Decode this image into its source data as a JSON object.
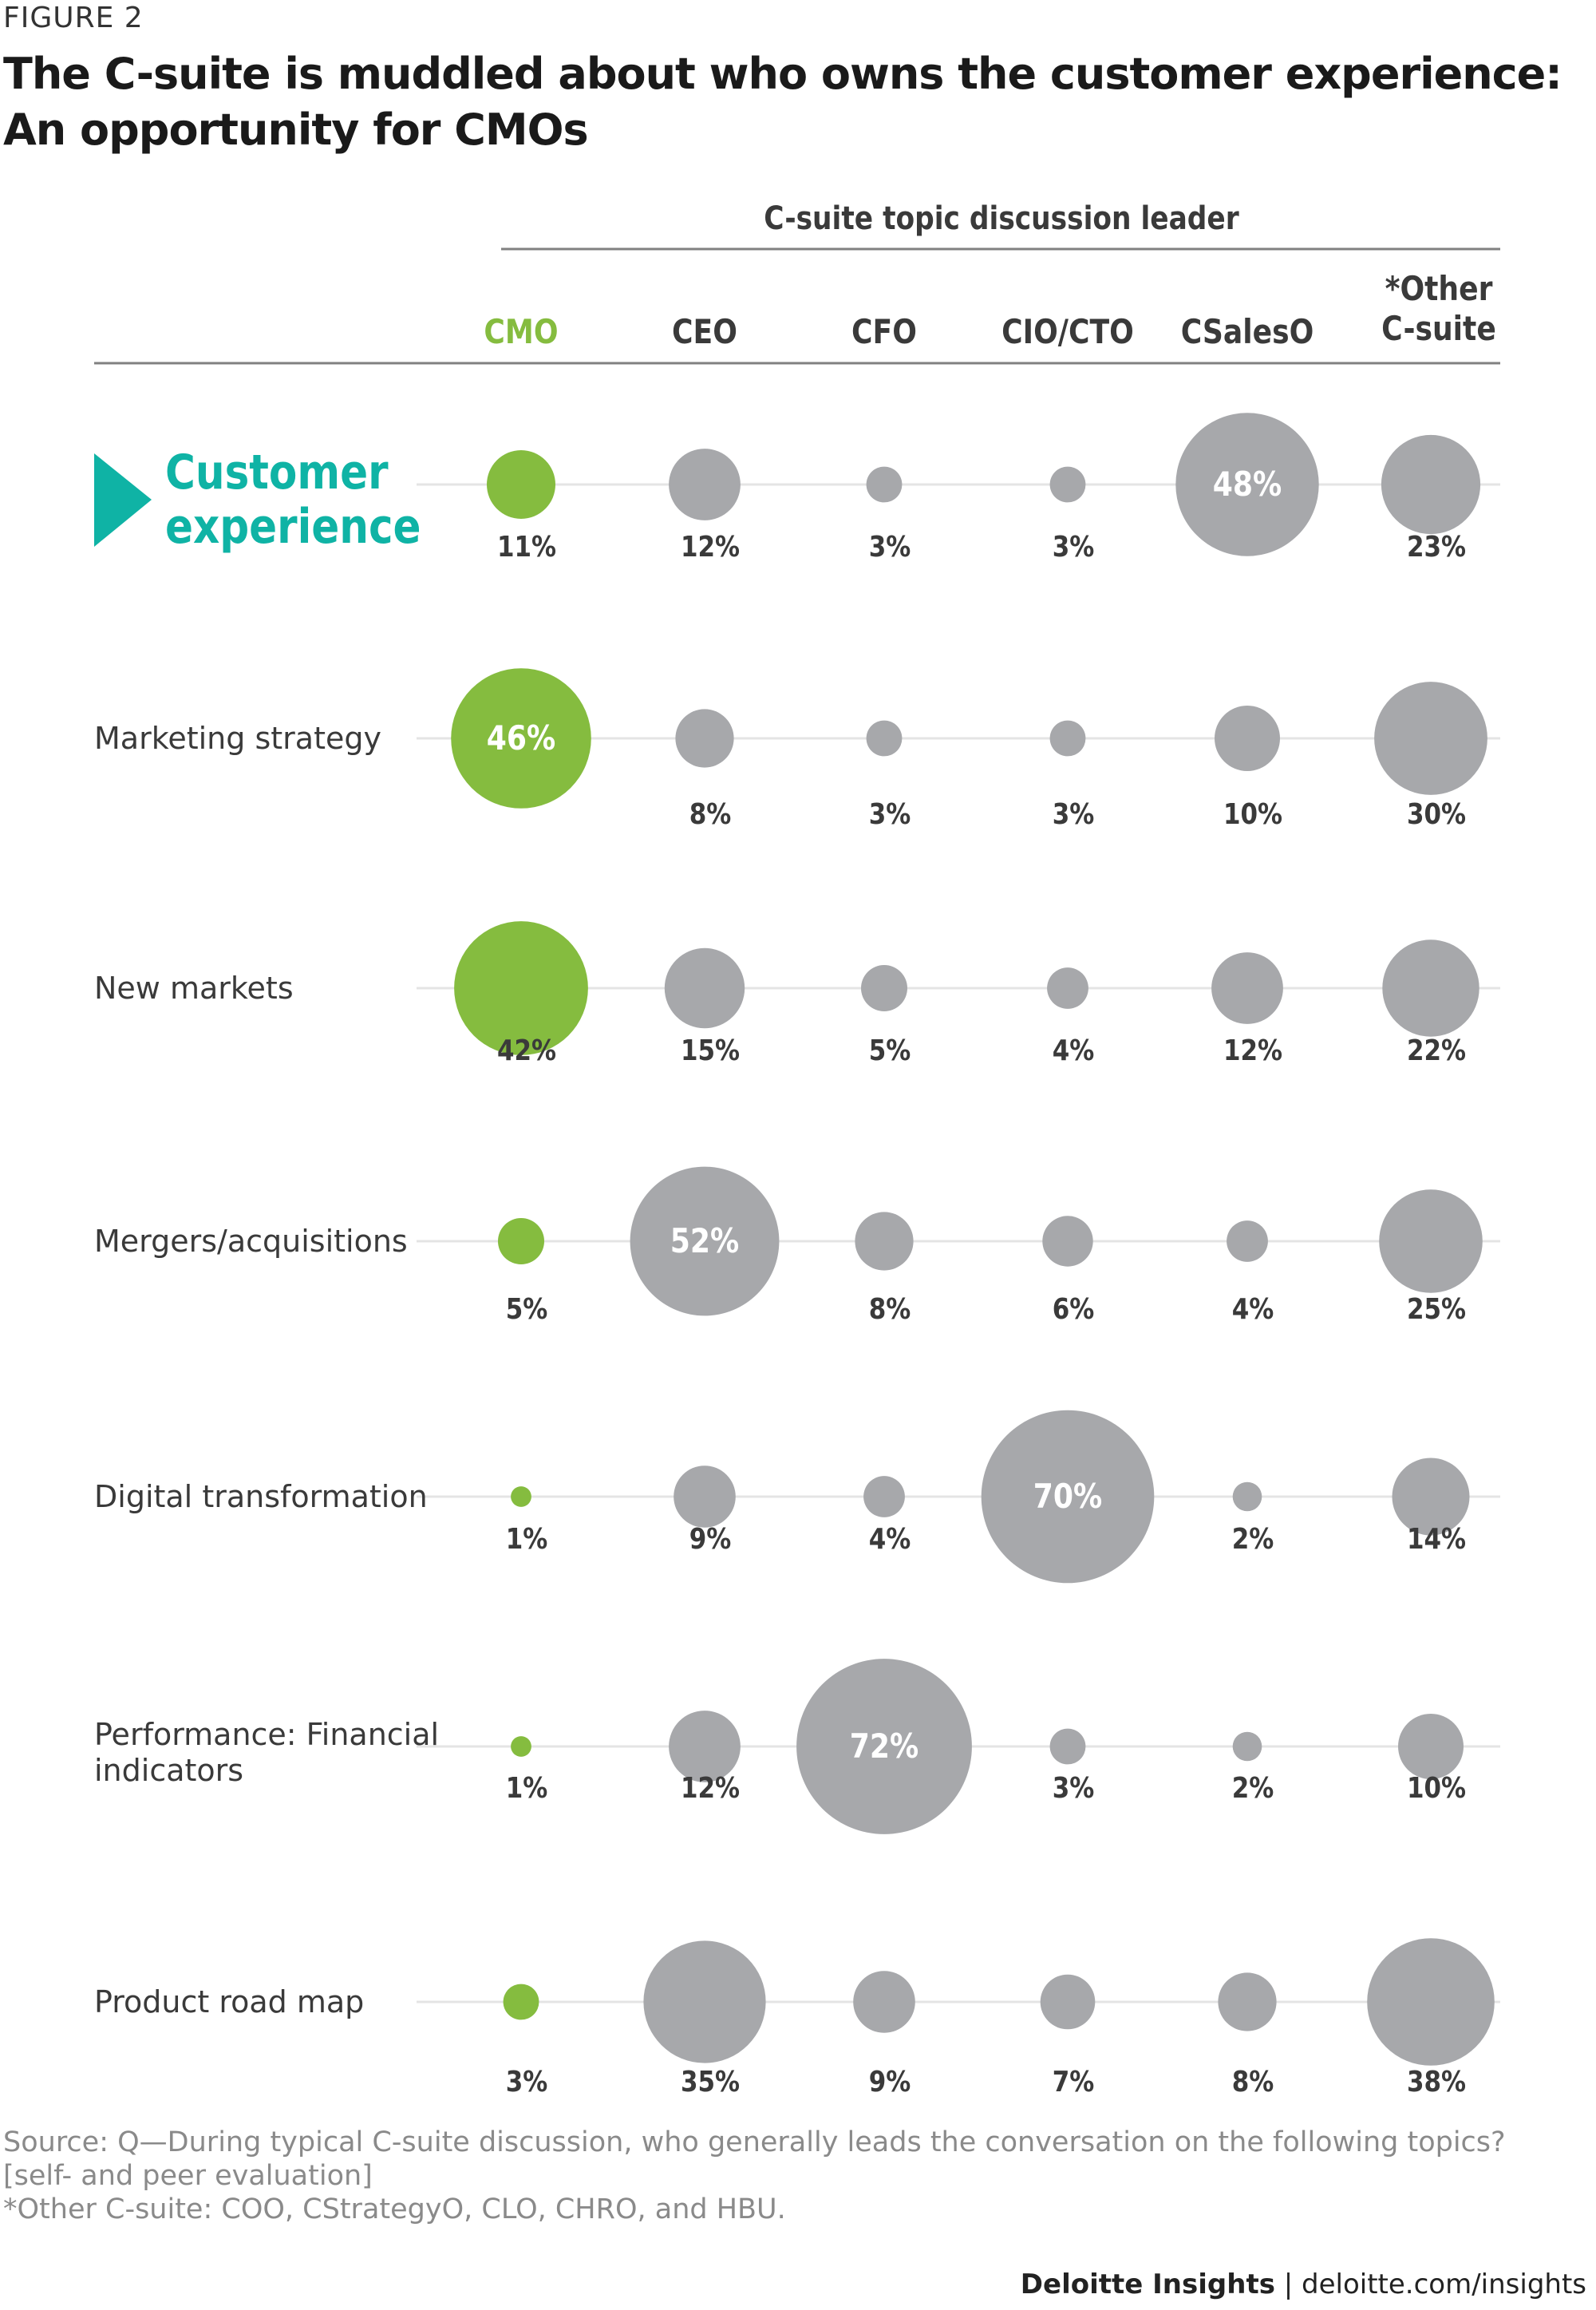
{
  "figure_label": "FIGURE 2",
  "title": "The C-suite is muddled about who owns the customer experience: An opportunity for CMOs",
  "source_lines": [
    "Source: Q—During typical C-suite discussion, who generally leads the conversation on the following topics?",
    "[self- and peer evaluation]",
    "*Other C-suite: COO, CStrategyO, CLO, CHRO, and HBU."
  ],
  "footer": {
    "brand": "Deloitte Insights",
    "separator": " | ",
    "url": "deloitte.com/insights"
  },
  "colors": {
    "cmo": "#85bc3f",
    "other": "#a7a8ab",
    "highlight": "#0fb3a5",
    "track": "#e4e4e4",
    "text": "#3a3a3a",
    "rule": "#808080"
  },
  "chart_data": {
    "type": "bubble-matrix",
    "column_group_label": "C-suite topic discussion leader",
    "columns": [
      [
        "CMO"
      ],
      [
        "CEO"
      ],
      [
        "CFO"
      ],
      [
        "CIO/CTO"
      ],
      [
        "CSalesO"
      ],
      [
        "*Other",
        "C-suite"
      ]
    ],
    "highlight_column": 0,
    "rows": [
      {
        "label": [
          "Customer",
          "experience"
        ],
        "highlight": true,
        "values": [
          11,
          12,
          3,
          3,
          48,
          23
        ]
      },
      {
        "label": [
          "Marketing strategy"
        ],
        "values": [
          46,
          8,
          3,
          3,
          10,
          30
        ]
      },
      {
        "label": [
          "New markets"
        ],
        "values": [
          42,
          15,
          5,
          4,
          12,
          22
        ]
      },
      {
        "label": [
          "Mergers/acquisitions"
        ],
        "values": [
          5,
          52,
          8,
          6,
          4,
          25
        ]
      },
      {
        "label": [
          "Digital transformation"
        ],
        "values": [
          1,
          9,
          4,
          70,
          2,
          14
        ]
      },
      {
        "label": [
          "Performance: Financial",
          "indicators"
        ],
        "values": [
          1,
          12,
          72,
          3,
          2,
          10
        ]
      },
      {
        "label": [
          "Product road map"
        ],
        "values": [
          3,
          35,
          9,
          7,
          8,
          38
        ]
      }
    ],
    "value_suffix": "%"
  }
}
